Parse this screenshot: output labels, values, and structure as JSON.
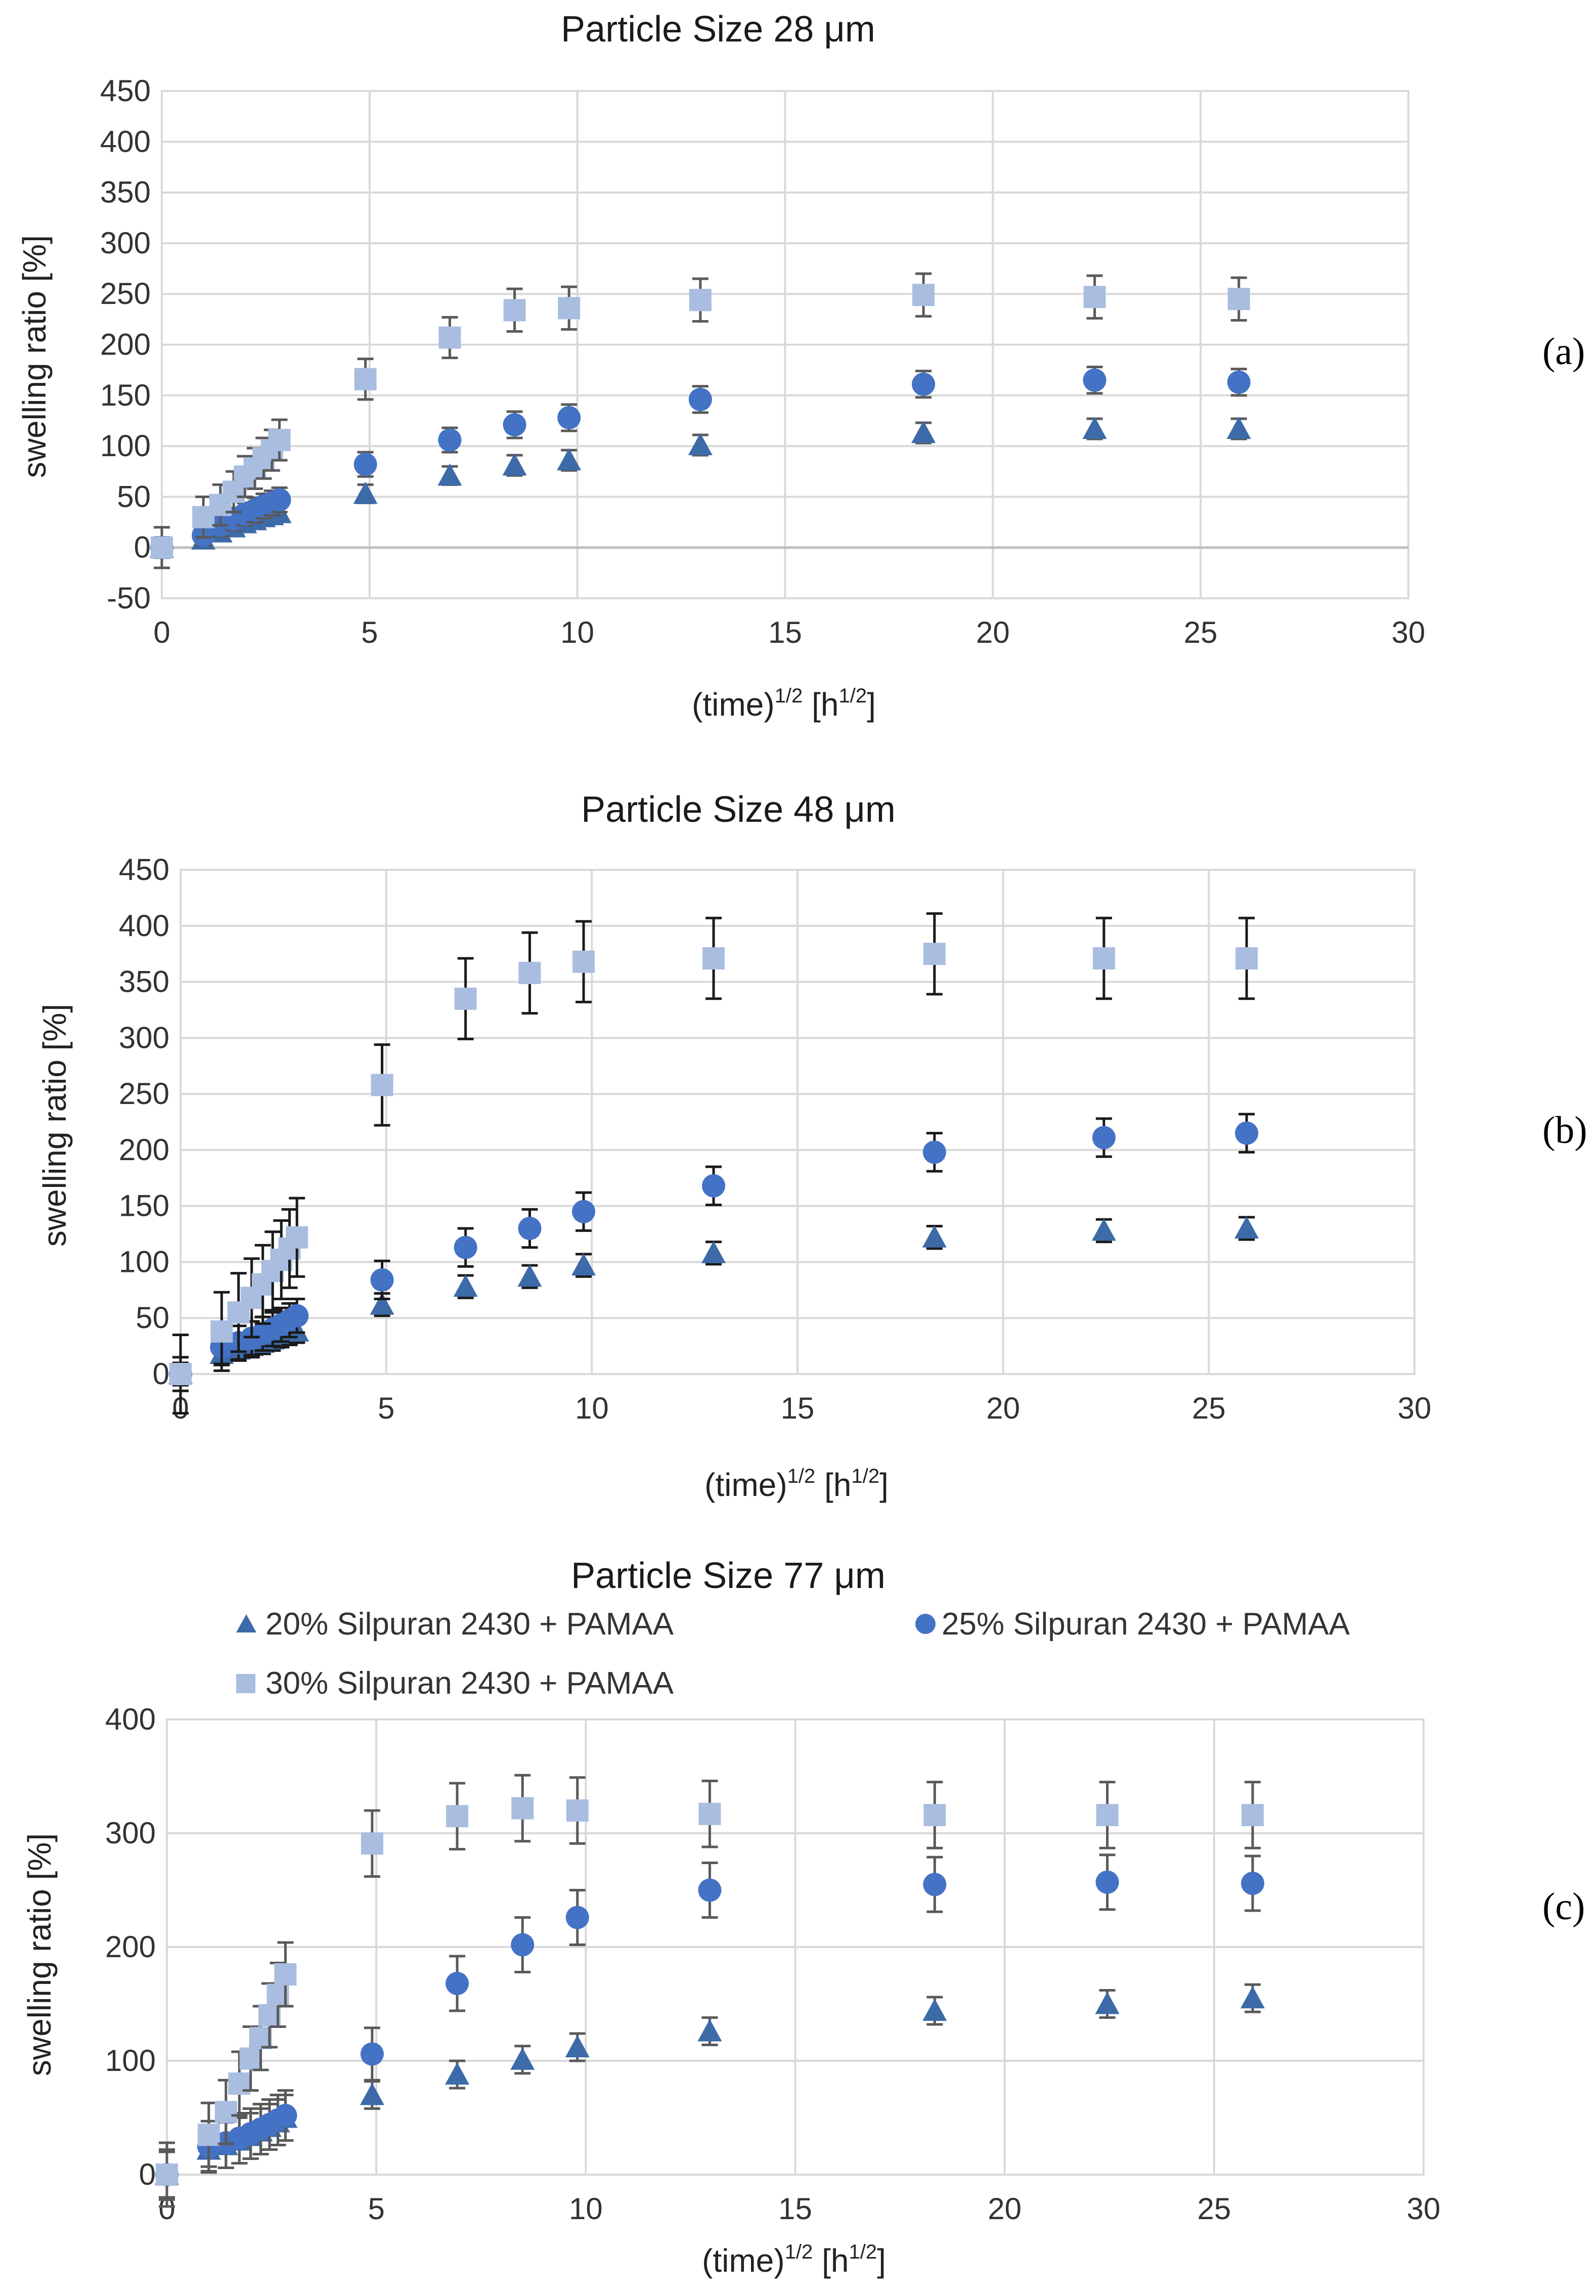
{
  "series_styles": [
    {
      "name": "20% Silpuran 2430 + PAMAA",
      "marker": "triangle",
      "color": "#3d6aa8"
    },
    {
      "name": "25% Silpuran 2430 + PAMAA",
      "marker": "circle",
      "color": "#4472c4"
    },
    {
      "name": "30% Silpuran 2430 + PAMAA",
      "marker": "square",
      "color": "#a9bde0"
    }
  ],
  "colors": {
    "grid": "#d9d9d9",
    "axis": "#bfbfbf",
    "errorbar_a": "#595959",
    "errorbar_b": "#1a1a1a",
    "errorbar_c": "#595959"
  },
  "chart_data": [
    {
      "type": "scatter",
      "panel": "(a)",
      "title": "Particle Size 28 μm",
      "xlabel": "(time)",
      "xlabel_sup": "1/2",
      "xlabel_unit_pre": " [h",
      "xlabel_unit_sup": "1/2",
      "xlabel_unit_post": "]",
      "ylabel": "swelling ratio [%]",
      "xlim": [
        0,
        30
      ],
      "ylim": [
        -50,
        450
      ],
      "xticks": [
        0,
        5,
        10,
        15,
        20,
        25,
        30
      ],
      "yticks": [
        -50,
        0,
        50,
        100,
        150,
        200,
        250,
        300,
        350,
        400,
        450
      ],
      "errorbar_color_key": "errorbar_a",
      "series": [
        {
          "name": "20% Silpuran 2430 + PAMAA",
          "x": [
            0,
            1,
            1.41,
            1.73,
            2,
            2.24,
            2.45,
            2.65,
            2.83,
            4.9,
            6.93,
            8.49,
            9.8,
            12.96,
            18.33,
            22.45,
            25.92
          ],
          "y": [
            0,
            8,
            15,
            20,
            24,
            27,
            30,
            32,
            34,
            53,
            71,
            81,
            86,
            101,
            113,
            117,
            117
          ],
          "err": [
            8,
            8,
            8,
            8,
            8,
            8,
            8,
            8,
            8,
            9,
            9,
            10,
            10,
            10,
            10,
            10,
            10
          ]
        },
        {
          "name": "25% Silpuran 2430 + PAMAA",
          "x": [
            0,
            1,
            1.41,
            1.73,
            2,
            2.24,
            2.45,
            2.65,
            2.83,
            4.9,
            6.93,
            8.49,
            9.8,
            12.96,
            18.33,
            22.45,
            25.92
          ],
          "y": [
            0,
            12,
            22,
            28,
            33,
            37,
            41,
            44,
            47,
            82,
            106,
            121,
            128,
            146,
            161,
            165,
            163
          ],
          "err": [
            10,
            10,
            11,
            11,
            11,
            12,
            12,
            12,
            12,
            12,
            12,
            13,
            13,
            13,
            13,
            13,
            13
          ]
        },
        {
          "name": "30% Silpuran 2430 + PAMAA",
          "x": [
            0,
            1,
            1.41,
            1.73,
            2,
            2.24,
            2.45,
            2.65,
            2.83,
            4.9,
            6.93,
            8.49,
            9.8,
            12.96,
            18.33,
            22.45,
            25.92
          ],
          "y": [
            0,
            30,
            42,
            55,
            70,
            78,
            88,
            96,
            106,
            166,
            207,
            234,
            236,
            244,
            249,
            247,
            245
          ],
          "err": [
            20,
            20,
            20,
            20,
            20,
            20,
            20,
            20,
            20,
            20,
            20,
            21,
            21,
            21,
            21,
            21,
            21
          ]
        }
      ]
    },
    {
      "type": "scatter",
      "panel": "(b)",
      "title": "Particle Size 48 μm",
      "xlabel": "(time)",
      "xlabel_sup": "1/2",
      "xlabel_unit_pre": " [h",
      "xlabel_unit_sup": "1/2",
      "xlabel_unit_post": "]",
      "ylabel": "swelling ratio [%]",
      "xlim": [
        0,
        30
      ],
      "ylim": [
        0,
        450
      ],
      "xticks": [
        0,
        5,
        10,
        15,
        20,
        25,
        30
      ],
      "yticks": [
        0,
        50,
        100,
        150,
        200,
        250,
        300,
        350,
        400,
        450
      ],
      "errorbar_color_key": "errorbar_b",
      "series": [
        {
          "name": "20% Silpuran 2430 + PAMAA",
          "x": [
            0,
            1,
            1.41,
            1.73,
            2,
            2.24,
            2.45,
            2.65,
            2.83,
            4.9,
            6.93,
            8.49,
            9.8,
            12.96,
            18.33,
            22.45,
            25.92
          ],
          "y": [
            0,
            18,
            22,
            25,
            28,
            31,
            34,
            36,
            38,
            62,
            78,
            87,
            97,
            108,
            122,
            128,
            130
          ],
          "err": [
            10,
            10,
            10,
            10,
            10,
            10,
            10,
            10,
            10,
            10,
            10,
            10,
            10,
            10,
            10,
            10,
            10
          ]
        },
        {
          "name": "25% Silpuran 2430 + PAMAA",
          "x": [
            0,
            1,
            1.41,
            1.73,
            2,
            2.24,
            2.45,
            2.65,
            2.83,
            4.9,
            6.93,
            8.49,
            9.8,
            12.96,
            18.33,
            22.45,
            25.92
          ],
          "y": [
            0,
            24,
            28,
            32,
            36,
            40,
            44,
            48,
            52,
            84,
            113,
            130,
            145,
            168,
            198,
            211,
            215
          ],
          "err": [
            15,
            15,
            15,
            15,
            15,
            15,
            15,
            15,
            15,
            17,
            17,
            17,
            17,
            17,
            17,
            17,
            17
          ]
        },
        {
          "name": "30% Silpuran 2430 + PAMAA",
          "x": [
            0,
            1,
            1.41,
            1.73,
            2,
            2.24,
            2.45,
            2.65,
            2.83,
            4.9,
            6.93,
            8.49,
            9.8,
            12.96,
            18.33,
            22.45,
            25.92
          ],
          "y": [
            0,
            38,
            55,
            68,
            80,
            92,
            102,
            112,
            122,
            258,
            335,
            358,
            368,
            371,
            375,
            371,
            371
          ],
          "err": [
            35,
            35,
            35,
            35,
            35,
            35,
            35,
            35,
            35,
            36,
            36,
            36,
            36,
            36,
            36,
            36,
            36
          ]
        }
      ]
    },
    {
      "type": "scatter",
      "panel": "(c)",
      "title": "Particle Size 77 μm",
      "xlabel": "(time)",
      "xlabel_sup": "1/2",
      "xlabel_unit_pre": " [h",
      "xlabel_unit_sup": "1/2",
      "xlabel_unit_post": "]",
      "ylabel": "swelling ratio [%]",
      "xlim": [
        0,
        30
      ],
      "ylim": [
        0,
        400
      ],
      "xticks": [
        0,
        5,
        10,
        15,
        20,
        25,
        30
      ],
      "yticks": [
        0,
        100,
        200,
        300,
        400
      ],
      "legend": "top",
      "errorbar_color_key": "errorbar_c",
      "series": [
        {
          "name": "20% Silpuran 2430 + PAMAA",
          "x": [
            0,
            1,
            1.41,
            1.73,
            2,
            2.24,
            2.45,
            2.65,
            2.83,
            4.9,
            6.93,
            8.49,
            9.8,
            12.96,
            18.33,
            22.45,
            25.92
          ],
          "y": [
            0,
            22,
            26,
            30,
            34,
            38,
            42,
            46,
            50,
            70,
            88,
            101,
            112,
            126,
            144,
            150,
            155
          ],
          "err": [
            20,
            20,
            20,
            20,
            20,
            20,
            20,
            20,
            20,
            12,
            12,
            12,
            12,
            12,
            12,
            12,
            12
          ]
        },
        {
          "name": "25% Silpuran 2430 + PAMAA",
          "x": [
            0,
            1,
            1.41,
            1.73,
            2,
            2.24,
            2.45,
            2.65,
            2.83,
            4.9,
            6.93,
            8.49,
            9.8,
            12.96,
            18.33,
            22.45,
            25.92
          ],
          "y": [
            0,
            25,
            28,
            32,
            36,
            40,
            44,
            48,
            52,
            106,
            168,
            202,
            226,
            250,
            255,
            257,
            256
          ],
          "err": [
            22,
            22,
            22,
            22,
            22,
            22,
            22,
            22,
            22,
            23,
            24,
            24,
            24,
            24,
            24,
            24,
            24
          ]
        },
        {
          "name": "30% Silpuran 2430 + PAMAA",
          "x": [
            0,
            1,
            1.41,
            1.73,
            2,
            2.24,
            2.45,
            2.65,
            2.83,
            4.9,
            6.93,
            8.49,
            9.8,
            12.96,
            18.33,
            22.45,
            25.92
          ],
          "y": [
            0,
            35,
            55,
            80,
            102,
            120,
            140,
            158,
            176,
            291,
            315,
            322,
            320,
            317,
            316,
            316,
            316
          ],
          "err": [
            28,
            28,
            28,
            28,
            28,
            28,
            28,
            28,
            28,
            29,
            29,
            29,
            29,
            29,
            29,
            29,
            29
          ]
        }
      ]
    }
  ]
}
